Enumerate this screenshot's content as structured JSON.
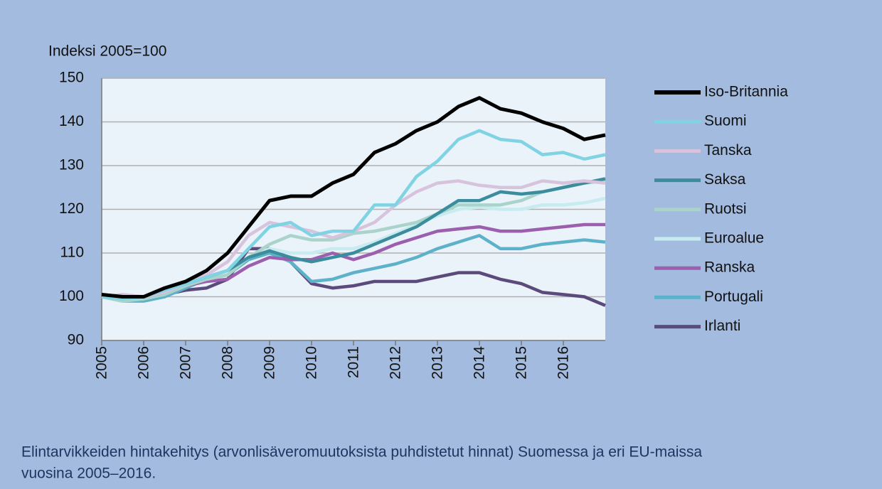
{
  "chart_data": {
    "type": "line",
    "y_label": "Indeksi 2005=100",
    "caption": [
      "Elintarvikkeiden hintakehitys (arvonlisäveromuutoksista puhdistetut hinnat) Suomessa ja eri EU-maissa",
      "vuosina 2005–2016."
    ],
    "x": [
      2005,
      2005.5,
      2006,
      2006.5,
      2007,
      2007.5,
      2008,
      2008.5,
      2009,
      2009.5,
      2010,
      2010.5,
      2011,
      2011.5,
      2012,
      2012.5,
      2013,
      2013.5,
      2014,
      2014.5,
      2015,
      2015.5,
      2016,
      2016.5,
      2017
    ],
    "xlim": [
      2005,
      2017
    ],
    "xticks": [
      2005,
      2006,
      2007,
      2008,
      2009,
      2010,
      2011,
      2012,
      2013,
      2014,
      2015,
      2016
    ],
    "ylim": [
      90,
      150
    ],
    "yticks": [
      90,
      100,
      110,
      120,
      130,
      140,
      150
    ],
    "grid": true,
    "legend": "right",
    "series": [
      {
        "name": "Iso-Britannia",
        "color": "#000000",
        "values": [
          100.5,
          100,
          100,
          102,
          103.5,
          106,
          110,
          116,
          122,
          123,
          123,
          126,
          128,
          133,
          135,
          138,
          140,
          143.5,
          145.5,
          143,
          142,
          140,
          138.5,
          136,
          137
        ]
      },
      {
        "name": "Suomi",
        "color": "#7fd3e2",
        "values": [
          100,
          99.5,
          100,
          101.5,
          103,
          104.5,
          106,
          111,
          116,
          117,
          114,
          115,
          115,
          121,
          121,
          127.5,
          131,
          136,
          138,
          136,
          135.5,
          132.5,
          133,
          131.5,
          132.5
        ]
      },
      {
        "name": "Tanska",
        "color": "#d8c3dc",
        "values": [
          100,
          100.5,
          100,
          101,
          103,
          105,
          108,
          114,
          117,
          116,
          115,
          113.5,
          115,
          117,
          121,
          124,
          126,
          126.5,
          125.5,
          125,
          125,
          126.5,
          126,
          126.5,
          126
        ]
      },
      {
        "name": "Saksa",
        "color": "#3b8d9e",
        "values": [
          100,
          100,
          100,
          101,
          103,
          104.5,
          106,
          109,
          110.5,
          109,
          108,
          109,
          110,
          112,
          114,
          116,
          119,
          122,
          122,
          124,
          123.5,
          124,
          125,
          126,
          127
        ]
      },
      {
        "name": "Ruotsi",
        "color": "#a9d3cb",
        "values": [
          100,
          99,
          99.5,
          100.5,
          102.5,
          104,
          105,
          109,
          112,
          114,
          113,
          113,
          114.5,
          115,
          116,
          117,
          119,
          121,
          121,
          121,
          122,
          124,
          125,
          126,
          126.5
        ]
      },
      {
        "name": "Euroalue",
        "color": "#c6ecf0",
        "values": [
          100,
          99.5,
          99.5,
          101,
          102.5,
          104,
          105,
          109,
          111,
          110,
          110,
          111,
          111,
          112.5,
          114.5,
          116.5,
          118.5,
          120,
          120.5,
          120,
          120,
          121,
          121,
          121.5,
          122.5
        ]
      },
      {
        "name": "Ranska",
        "color": "#9b5fae",
        "values": [
          100,
          100,
          100,
          101,
          102.5,
          103.5,
          104,
          107,
          109,
          108.5,
          108.5,
          110,
          108.5,
          110,
          112,
          113.5,
          115,
          115.5,
          116,
          115,
          115,
          115.5,
          116,
          116.5,
          116.5
        ]
      },
      {
        "name": "Portugali",
        "color": "#5db2ca",
        "values": [
          100,
          99,
          99,
          100,
          102,
          104,
          105,
          108.5,
          110,
          108,
          103.5,
          104,
          105.5,
          106.5,
          107.5,
          109,
          111,
          112.5,
          114,
          111,
          111,
          112,
          112.5,
          113,
          112.5
        ]
      },
      {
        "name": "Irlanti",
        "color": "#5b4a7b",
        "values": [
          100.5,
          100,
          100,
          100.5,
          101.5,
          102,
          104,
          111,
          111,
          108,
          103,
          102,
          102.5,
          103.5,
          103.5,
          103.5,
          104.5,
          105.5,
          105.5,
          104,
          103,
          101,
          100.5,
          100,
          98
        ]
      }
    ]
  }
}
